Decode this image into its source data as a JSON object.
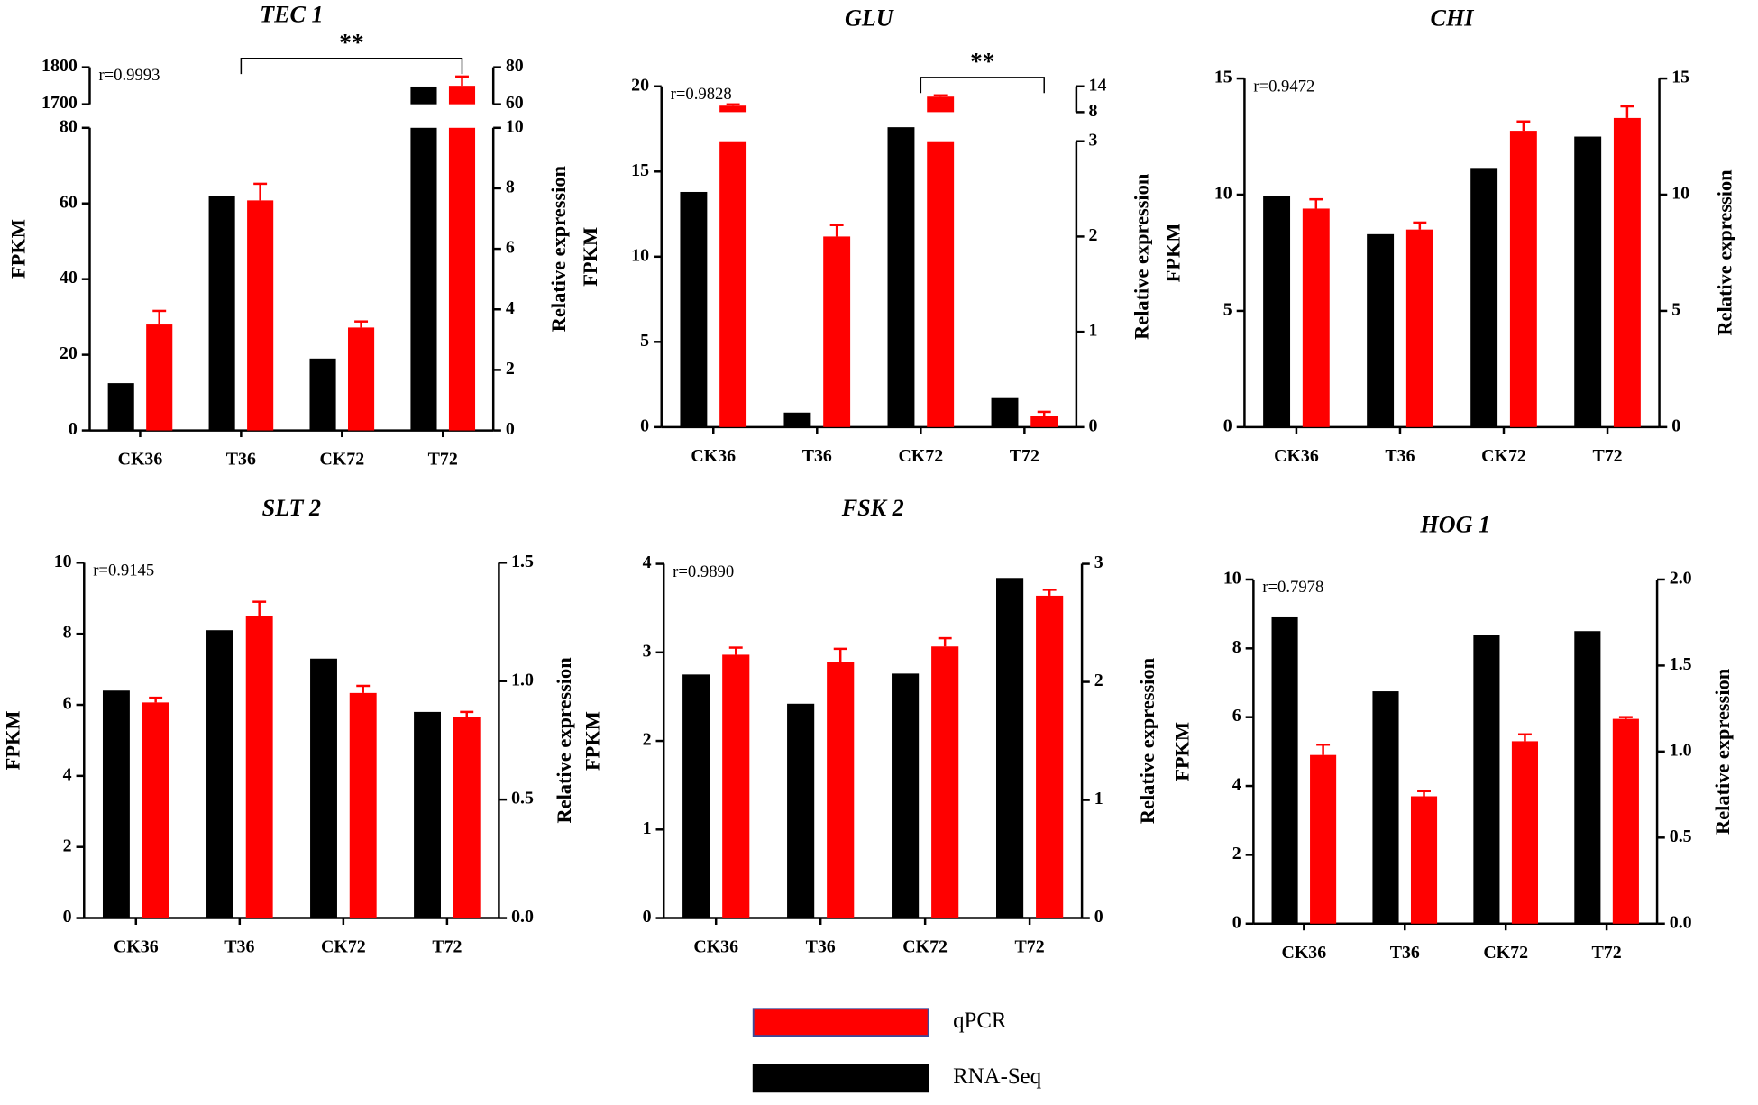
{
  "chart_data": [
    {
      "type": "bar",
      "title": "TEC 1",
      "correlation": "r=0.9993",
      "ylabel": "FPKM",
      "y2label": "Relative expression",
      "categories": [
        "CK36",
        "T36",
        "CK72",
        "T72"
      ],
      "fpkm": [
        12.5,
        62,
        19,
        1748
      ],
      "qpcr": [
        3.5,
        7.6,
        3.4,
        70
      ],
      "qpcr_errors": [
        0.45,
        0.55,
        0.2,
        5
      ],
      "ylim": [
        0,
        80
      ],
      "yticks": [
        0,
        20,
        40,
        60,
        80
      ],
      "ylim_upper": [
        1700,
        1800
      ],
      "yticks_upper": [
        1700,
        1800
      ],
      "y2lim": [
        0,
        10
      ],
      "y2ticks": [
        0,
        2,
        4,
        6,
        8,
        10
      ],
      "y2lim_upper": [
        60,
        80
      ],
      "y2ticks_upper": [
        60,
        80
      ],
      "bracket": {
        "text": "**",
        "categories": [
          1,
          3
        ]
      }
    },
    {
      "type": "bar",
      "title": "GLU",
      "correlation": "r=0.9828",
      "ylabel": "FPKM",
      "y2label": "Relative expression",
      "categories": [
        "CK36",
        "T36",
        "CK72",
        "T72"
      ],
      "fpkm": [
        13.8,
        0.85,
        17.6,
        1.7
      ],
      "qpcr": [
        9.5,
        2.0,
        11.6,
        0.12
      ],
      "qpcr_errors": [
        0.3,
        0.12,
        0.3,
        0.04
      ],
      "ylim": [
        0,
        20
      ],
      "yticks": [
        0,
        5,
        10,
        15,
        20
      ],
      "y2lim": [
        0,
        3
      ],
      "y2ticks": [
        0,
        1,
        2,
        3
      ],
      "y2lim_upper": [
        8,
        14
      ],
      "y2ticks_upper": [
        8,
        14
      ],
      "bracket": {
        "text": "**",
        "categories": [
          2,
          3
        ]
      }
    },
    {
      "type": "bar",
      "title": "CHI",
      "correlation": "r=0.9472",
      "ylabel": "FPKM",
      "y2label": "Relative expression",
      "categories": [
        "CK36",
        "T36",
        "CK72",
        "T72"
      ],
      "fpkm": [
        9.95,
        8.3,
        11.15,
        12.5
      ],
      "qpcr": [
        9.4,
        8.5,
        12.75,
        13.3
      ],
      "qpcr_errors": [
        0.4,
        0.3,
        0.4,
        0.5
      ],
      "ylim": [
        0,
        15
      ],
      "yticks": [
        0,
        5,
        10,
        15
      ],
      "y2lim": [
        0,
        15
      ],
      "y2ticks": [
        0,
        5,
        10,
        15
      ]
    },
    {
      "type": "bar",
      "title": "SLT 2",
      "correlation": "r=0.9145",
      "ylabel": "FPKM",
      "y2label": "Relative expression",
      "categories": [
        "CK36",
        "T36",
        "CK72",
        "T72"
      ],
      "fpkm": [
        6.4,
        8.1,
        7.3,
        5.8
      ],
      "qpcr": [
        0.91,
        1.275,
        0.95,
        0.85
      ],
      "qpcr_errors": [
        0.02,
        0.06,
        0.03,
        0.02
      ],
      "ylim": [
        0,
        10
      ],
      "yticks": [
        0,
        2,
        4,
        6,
        8,
        10
      ],
      "y2lim": [
        0,
        1.5
      ],
      "y2ticks": [
        {
          "value": 0,
          "label": "0.0"
        },
        0.5,
        {
          "value": 1,
          "label": "1.0"
        },
        1.5
      ]
    },
    {
      "type": "bar",
      "title": "FSK 2",
      "correlation": "r=0.9890",
      "ylabel": "FPKM",
      "y2label": "Relative expression",
      "categories": [
        "CK36",
        "T36",
        "CK72",
        "T72"
      ],
      "fpkm": [
        2.75,
        2.42,
        2.76,
        3.84
      ],
      "qpcr": [
        2.23,
        2.17,
        2.3,
        2.73
      ],
      "qpcr_errors": [
        0.06,
        0.11,
        0.07,
        0.05
      ],
      "ylim": [
        0,
        4
      ],
      "yticks": [
        0,
        1,
        2,
        3,
        4
      ],
      "y2lim": [
        0,
        3
      ],
      "y2ticks": [
        0,
        1,
        2,
        3
      ]
    },
    {
      "type": "bar",
      "title": "HOG 1",
      "correlation": "r=0.7978",
      "ylabel": "FPKM",
      "y2label": "Relative expression",
      "categories": [
        "CK36",
        "T36",
        "CK72",
        "T72"
      ],
      "fpkm": [
        8.9,
        6.75,
        8.4,
        8.5
      ],
      "qpcr": [
        0.98,
        0.74,
        1.06,
        1.19
      ],
      "qpcr_errors": [
        0.06,
        0.03,
        0.04,
        0.01
      ],
      "ylim": [
        0,
        10
      ],
      "yticks": [
        0,
        2,
        4,
        6,
        8,
        10
      ],
      "y2lim": [
        0,
        2
      ],
      "y2ticks": [
        {
          "value": 0,
          "label": "0.0"
        },
        0.5,
        {
          "value": 1,
          "label": "1.0"
        },
        1.5,
        {
          "value": 2,
          "label": "2.0"
        }
      ]
    }
  ],
  "legend": [
    {
      "name": "qPCR",
      "color": "#ff0000"
    },
    {
      "name": "RNA-Seq",
      "color": "#000000"
    }
  ]
}
